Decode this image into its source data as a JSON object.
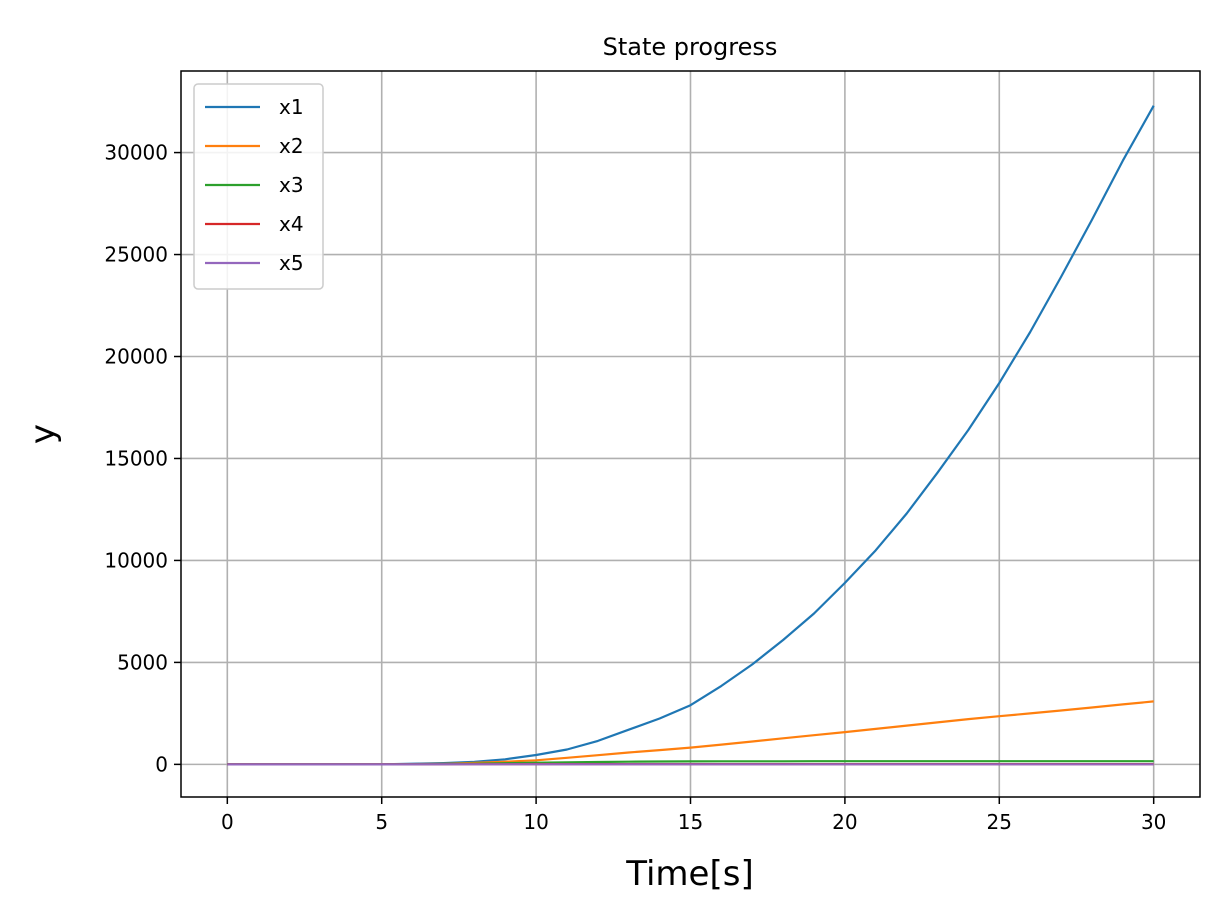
{
  "chart_data": {
    "type": "line",
    "title": "State progress",
    "xlabel": "Time[s]",
    "ylabel": "y",
    "xlim": [
      -1.5,
      31.5
    ],
    "ylim": [
      -1600,
      34000
    ],
    "xticks": [
      0,
      5,
      10,
      15,
      20,
      25,
      30
    ],
    "yticks": [
      0,
      5000,
      10000,
      15000,
      20000,
      25000,
      30000
    ],
    "grid": true,
    "legend_position": "top-left",
    "x": [
      0,
      5,
      7,
      8,
      9,
      10,
      11,
      12,
      13,
      14,
      15,
      16,
      17,
      18,
      19,
      20,
      21,
      22,
      23,
      24,
      25,
      26,
      27,
      28,
      29,
      30
    ],
    "series": [
      {
        "name": "x1",
        "color": "#1f77b4",
        "values": [
          0,
          0,
          60,
          120,
          250,
          460,
          730,
          1150,
          1700,
          2250,
          2900,
          3850,
          4900,
          6100,
          7400,
          8900,
          10500,
          12300,
          14300,
          16400,
          18700,
          21200,
          23900,
          26700,
          29600,
          32300
        ]
      },
      {
        "name": "x2",
        "color": "#ff7f0e",
        "values": [
          0,
          0,
          30,
          70,
          130,
          200,
          320,
          450,
          580,
          700,
          820,
          970,
          1120,
          1280,
          1430,
          1580,
          1740,
          1900,
          2060,
          2220,
          2360,
          2500,
          2640,
          2790,
          2940,
          3090
        ]
      },
      {
        "name": "x3",
        "color": "#2ca02c",
        "values": [
          0,
          0,
          20,
          35,
          55,
          80,
          100,
          115,
          130,
          140,
          145,
          150,
          152,
          153,
          154,
          155,
          155,
          155,
          155,
          155,
          155,
          155,
          155,
          155,
          155,
          155
        ]
      },
      {
        "name": "x4",
        "color": "#d62728",
        "values": [
          0,
          0,
          5,
          8,
          10,
          12,
          12,
          12,
          12,
          12,
          12,
          12,
          12,
          12,
          12,
          12,
          12,
          12,
          12,
          12,
          12,
          12,
          12,
          12,
          12,
          12
        ]
      },
      {
        "name": "x5",
        "color": "#9467bd",
        "values": [
          0,
          0,
          2,
          3,
          3,
          3,
          3,
          3,
          3,
          3,
          3,
          3,
          3,
          3,
          3,
          3,
          3,
          3,
          3,
          3,
          3,
          3,
          3,
          3,
          3,
          3
        ]
      }
    ]
  }
}
